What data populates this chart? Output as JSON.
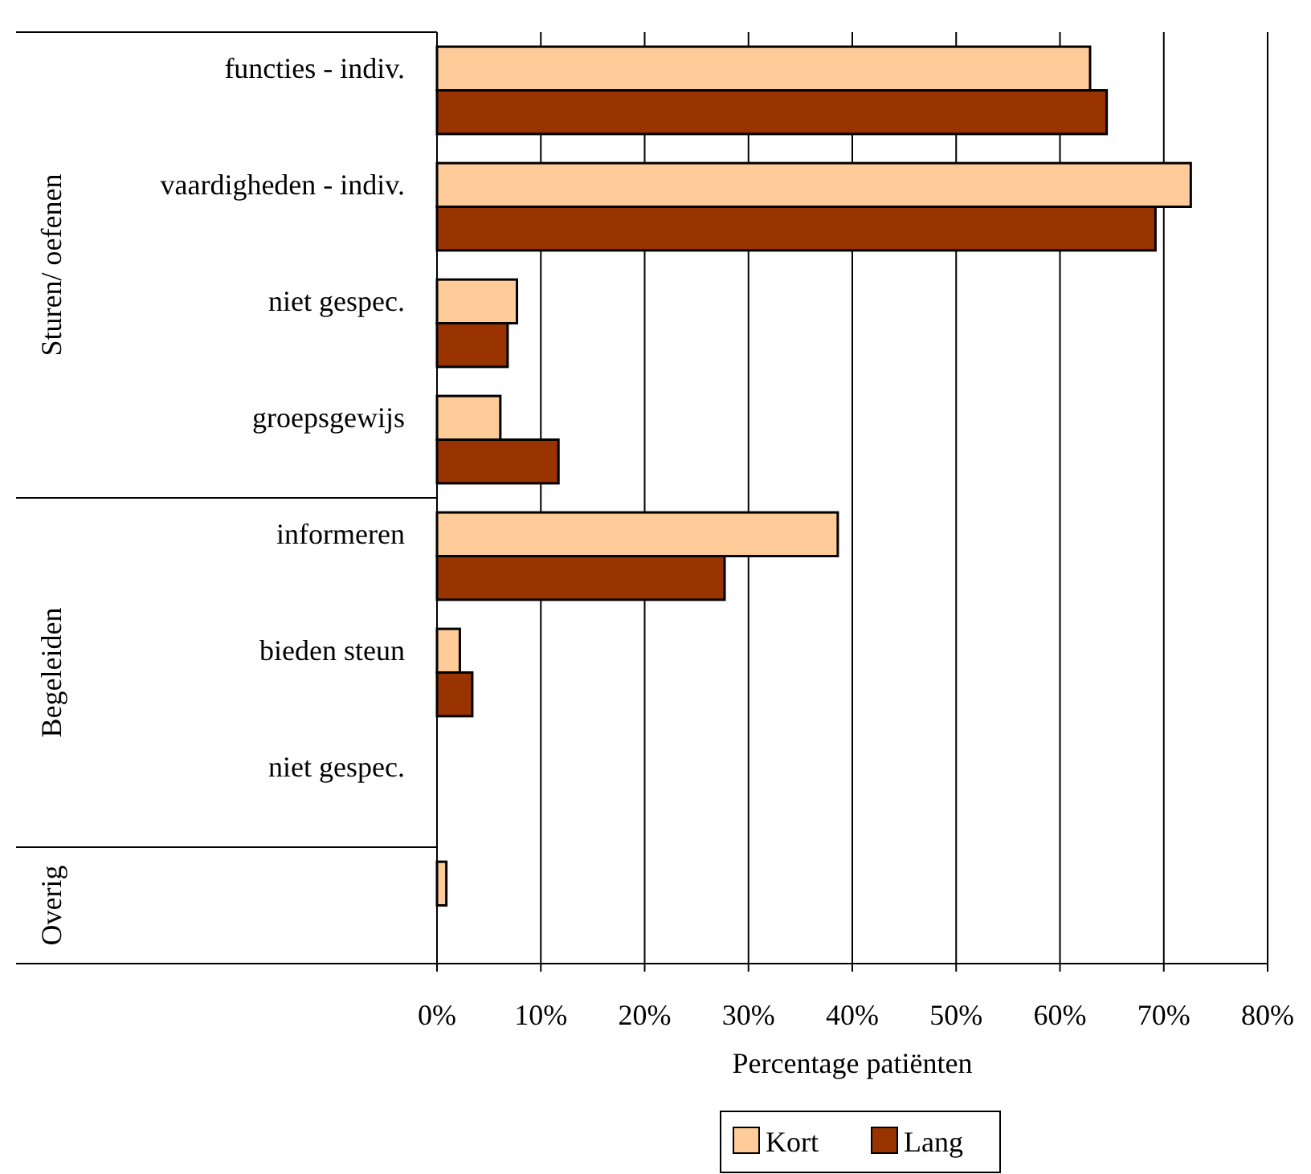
{
  "chart_data": {
    "type": "bar",
    "orientation": "horizontal",
    "xlabel": "Percentage patiënten",
    "categories": [
      "functies - indiv.",
      "vaardigheden - indiv.",
      "niet gespec.",
      "groepsgewijs",
      "informeren",
      "bieden steun",
      "niet gespec.",
      null
    ],
    "series": [
      {
        "name": "Kort",
        "color": "#ffcc99",
        "values": [
          62.9,
          72.6,
          7.7,
          6.1,
          38.6,
          2.2,
          0,
          0.9
        ]
      },
      {
        "name": "Lang",
        "color": "#993300",
        "values": [
          64.5,
          69.2,
          6.8,
          11.7,
          27.7,
          3.4,
          0,
          null
        ]
      }
    ],
    "xlim": [
      0,
      80
    ],
    "xticks": [
      {
        "value": 0,
        "label": "0%"
      },
      {
        "value": 10,
        "label": "10%"
      },
      {
        "value": 20,
        "label": "20%"
      },
      {
        "value": 30,
        "label": "30%"
      },
      {
        "value": 40,
        "label": "40%"
      },
      {
        "value": 50,
        "label": "50%"
      },
      {
        "value": 60,
        "label": "60%"
      },
      {
        "value": 70,
        "label": "70%"
      },
      {
        "value": 80,
        "label": "80%"
      }
    ],
    "grid": "x",
    "legend": "bottom",
    "annotations": [
      "Sturen/ oefenen",
      "Begeleiden",
      "Overig"
    ]
  }
}
